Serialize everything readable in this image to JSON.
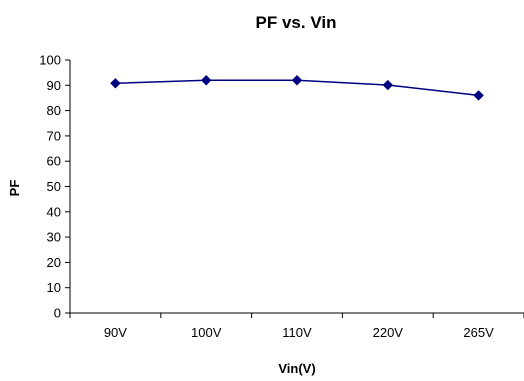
{
  "chart_data": {
    "type": "line",
    "title": "PF vs. Vin",
    "xlabel": "Vin(V)",
    "ylabel": "PF",
    "categories": [
      "90V",
      "100V",
      "110V",
      "220V",
      "265V"
    ],
    "series": [
      {
        "values": [
          90.8,
          92.0,
          92.0,
          90.1,
          86.0
        ],
        "color": "#000080",
        "marker": "diamond"
      }
    ],
    "ylim": [
      0,
      100
    ],
    "yticks": [
      0,
      10,
      20,
      30,
      40,
      50,
      60,
      70,
      80,
      90,
      100
    ],
    "grid": false,
    "legend": "none"
  }
}
